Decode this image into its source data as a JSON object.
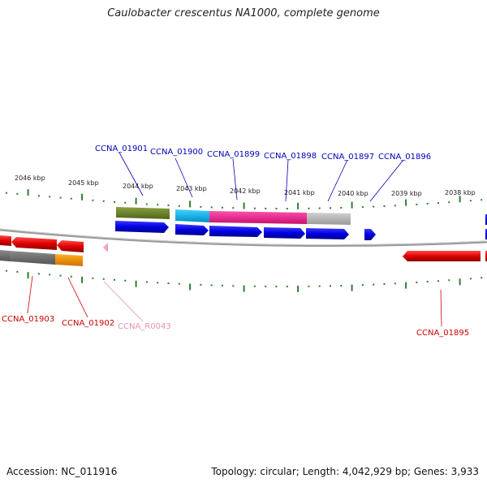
{
  "title": "Caulobacter crescentus NA1000, complete genome",
  "footer": {
    "accession": "Accession: NC_011916",
    "stats": "Topology: circular; Length: 4,042,929 bp; Genes: 3,933"
  },
  "scale_labels": [
    "2046 kbp",
    "2045 kbp",
    "2044 kbp",
    "2043 kbp",
    "2042 kbp",
    "2041 kbp",
    "2040 kbp",
    "2039 kbp",
    "2038 kbp"
  ],
  "forward_gene_labels": [
    "CCNA_01901",
    "CCNA_01900",
    "CCNA_01899",
    "CCNA_01898",
    "CCNA_01897",
    "CCNA_01896"
  ],
  "reverse_gene_labels": [
    "CCNA_01903",
    "CCNA_01902",
    "CCNA_R0043",
    "CCNA_01895"
  ],
  "colors": {
    "forward_label": "#0000bb",
    "reverse_label": "#cc0000",
    "rna_label": "#e890b0",
    "scale_ticks": "#2e7d32",
    "cds_forward": "#0000ee",
    "cds_reverse": "#ee0000",
    "backbone": "#888888"
  }
}
